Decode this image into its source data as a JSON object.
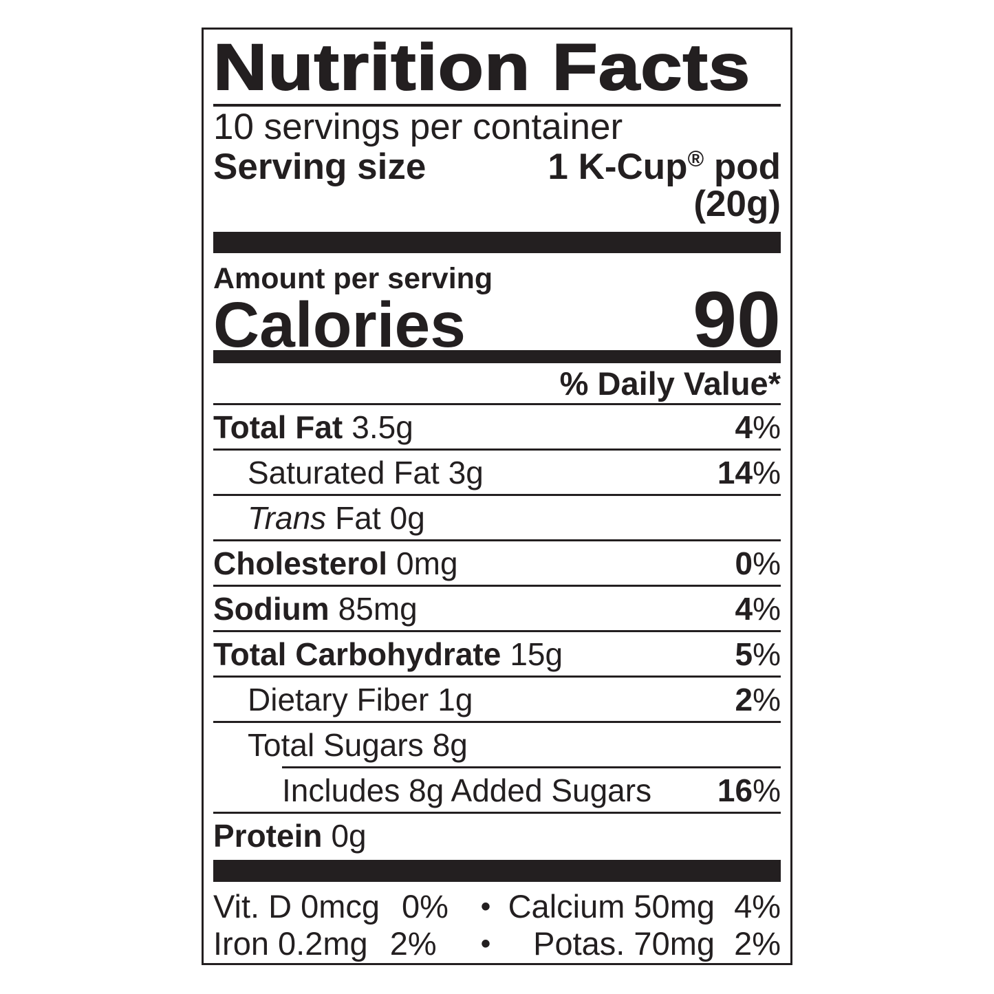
{
  "label": {
    "title": "Nutrition Facts",
    "servings_per_container": "10 servings per container",
    "serving_size_label": "Serving size",
    "serving_size_value": "1 K-Cup",
    "registered_mark": "®",
    "serving_size_suffix": " pod",
    "serving_size_weight": "(20g)",
    "amount_per_serving": "Amount per serving",
    "calories_label": "Calories",
    "calories_value": "90",
    "daily_value_header": "% Daily Value*",
    "percent_sign": "%",
    "bullet": "•",
    "nutrients": [
      {
        "name": "Total Fat",
        "amount": "3.5g",
        "dv": "4"
      },
      {
        "name": "Saturated Fat",
        "amount": "3g",
        "dv": "14"
      },
      {
        "name_italic": "Trans",
        "name_rest": "Fat",
        "amount": "0g"
      },
      {
        "name": "Cholesterol",
        "amount": "0mg",
        "dv": "0"
      },
      {
        "name": "Sodium",
        "amount": "85mg",
        "dv": "4"
      },
      {
        "name": "Total Carbohydrate",
        "amount": "15g",
        "dv": "5"
      },
      {
        "name": "Dietary Fiber",
        "amount": "1g",
        "dv": "2"
      },
      {
        "name": "Total Sugars",
        "amount": "8g"
      },
      {
        "name": "Includes 8g Added Sugars",
        "dv": "16"
      },
      {
        "name": "Protein",
        "amount": "0g"
      }
    ],
    "micronutrients": [
      {
        "left_name": "Vit. D 0mcg",
        "left_dv": "0%",
        "right_name": "Calcium 50mg",
        "right_dv": "4%"
      },
      {
        "left_name": "Iron 0.2mg",
        "left_dv": "2%",
        "right_name": "Potas. 70mg",
        "right_dv": "2%"
      }
    ]
  }
}
